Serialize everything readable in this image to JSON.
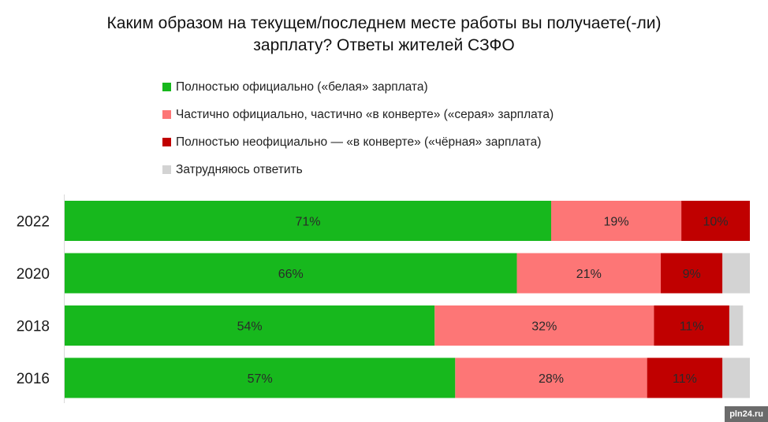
{
  "chart_data": {
    "type": "bar",
    "orientation": "horizontal",
    "stacked": true,
    "title": "Каким образом на текущем/последнем месте работы вы получаете(-ли) зарплату? Ответы жителей СЗФО",
    "title_lines": [
      "Каким образом на текущем/последнем месте работы вы получаете(-ли)",
      "зарплату? Ответы жителей СЗФО"
    ],
    "categories": [
      "2022",
      "2020",
      "2018",
      "2016"
    ],
    "series": [
      {
        "name": "Полностью официально («белая» зарплата)",
        "color": "#17b81d",
        "values": [
          71,
          66,
          54,
          57
        ],
        "labels": [
          "71%",
          "66%",
          "54%",
          "57%"
        ]
      },
      {
        "name": "Частично официально, частично «в конверте» («серая» зарплата)",
        "color": "#fd7676",
        "values": [
          19,
          21,
          32,
          28
        ],
        "labels": [
          "19%",
          "21%",
          "32%",
          "28%"
        ]
      },
      {
        "name": "Полностью неофициально — «в конверте» («чёрная» зарплата)",
        "color": "#c00000",
        "values": [
          10,
          9,
          11,
          11
        ],
        "labels": [
          "10%",
          "9%",
          "11%",
          "11%"
        ]
      },
      {
        "name": "Затрудняюсь ответить",
        "color": "#d3d3d3",
        "values": [
          0,
          4,
          2,
          4
        ],
        "labels": [
          "",
          "",
          "",
          ""
        ]
      }
    ],
    "xlim": [
      0,
      100
    ],
    "legend_position": "top",
    "grid": false
  },
  "watermark": "pln24.ru"
}
